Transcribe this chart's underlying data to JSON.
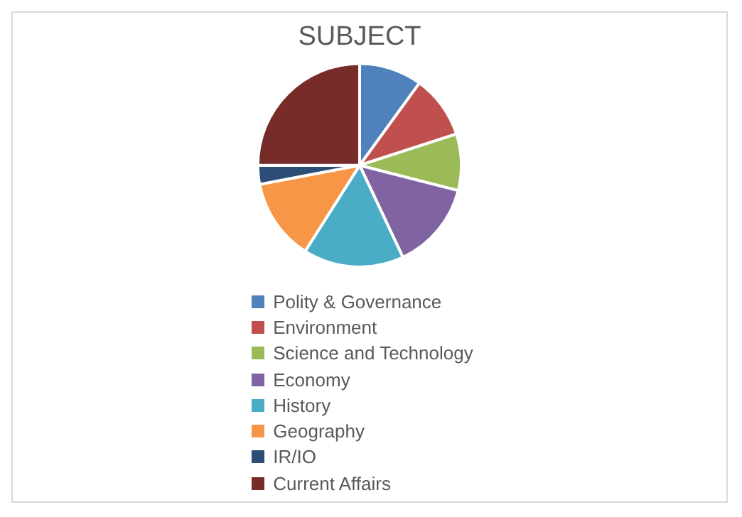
{
  "chart_data": {
    "type": "pie",
    "title": "SUBJECT",
    "categories": [
      "Polity & Governance",
      "Environment",
      "Science and Technology",
      "Economy",
      "History",
      "Geography",
      "IR/IO",
      "Current Affairs"
    ],
    "values": [
      10,
      10,
      9,
      14,
      16,
      13,
      3,
      25
    ],
    "colors": [
      "#4f81bd",
      "#c0504d",
      "#9bbb59",
      "#8064a2",
      "#4bacc6",
      "#f79646",
      "#2c4d75",
      "#772c2a"
    ],
    "legend": "bottom"
  }
}
